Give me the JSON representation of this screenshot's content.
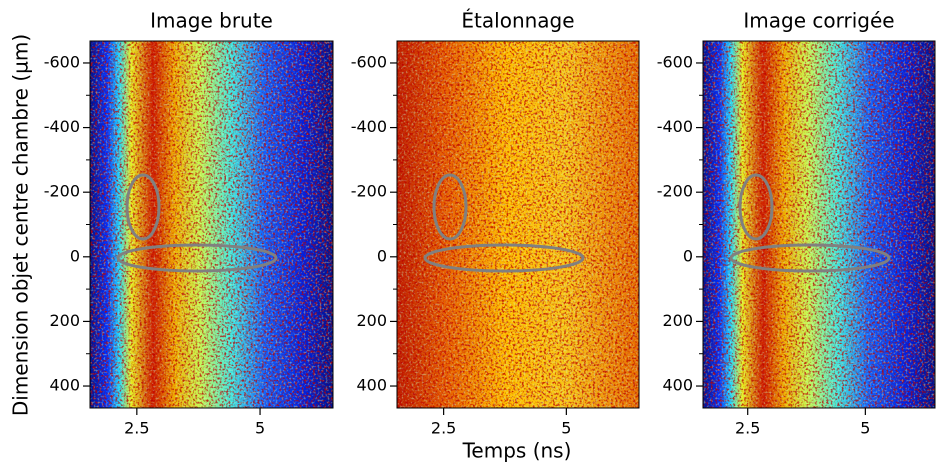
{
  "chart_data": [
    {
      "type": "image",
      "title": "Image brute",
      "ylabel": "Dimension objet centre chambre (µm)",
      "xlim": [
        1.55,
        6.48
      ],
      "ylim": [
        468,
        -668
      ],
      "xticks": [
        2.5,
        5
      ],
      "yticks": [
        -600,
        -400,
        -200,
        0,
        200,
        400
      ],
      "yminor_ticks": [
        -500,
        -300,
        -100,
        100,
        300
      ],
      "map": "raw"
    },
    {
      "type": "image",
      "title": "Étalonnage",
      "xlabel": "Temps (ns)",
      "xlim": [
        1.55,
        6.48
      ],
      "ylim": [
        468,
        -668
      ],
      "xticks": [
        2.5,
        5
      ],
      "yticks": [
        -600,
        -400,
        -200,
        0,
        200,
        400
      ],
      "yminor_ticks": [
        -500,
        -300,
        -100,
        100,
        300
      ],
      "map": "calibration"
    },
    {
      "type": "image",
      "title": "Image corrigée",
      "xlim": [
        1.55,
        6.48
      ],
      "ylim": [
        468,
        -668
      ],
      "xticks": [
        2.5,
        5
      ],
      "yticks": [
        -600,
        -400,
        -200,
        0,
        200,
        400
      ],
      "yminor_ticks": [
        -500,
        -300,
        -100,
        100,
        300
      ],
      "map": "raw"
    }
  ]
}
